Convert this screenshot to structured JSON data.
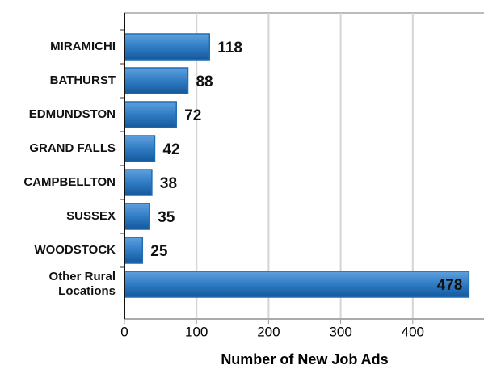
{
  "chart_data": {
    "type": "bar",
    "orientation": "horizontal",
    "x_label": "Number of New Job Ads",
    "categories": [
      "MIRAMICHI",
      "BATHURST",
      "EDMUNDSTON",
      "GRAND FALLS",
      "CAMPBELLTON",
      "SUSSEX",
      "WOODSTOCK",
      "Other Rural\nLocations"
    ],
    "values": [
      118,
      88,
      72,
      42,
      38,
      35,
      25,
      478
    ],
    "color": "#1f6db5",
    "xlim": [
      0,
      500
    ],
    "xticks": [
      0,
      100,
      200,
      300,
      400
    ],
    "grid": true
  }
}
